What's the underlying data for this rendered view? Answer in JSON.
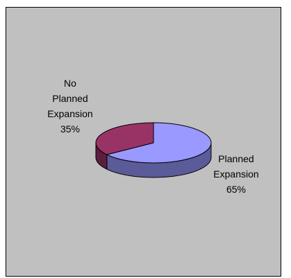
{
  "chart_data": {
    "type": "pie",
    "style": "3d",
    "slices": [
      {
        "label_lines": [
          "Planned",
          "Expansion",
          "65%"
        ],
        "value": 65,
        "color": "#9999ff",
        "side_color": "#5b5b99"
      },
      {
        "label_lines": [
          "No",
          "Planned",
          "Expansion",
          "35%"
        ],
        "value": 35,
        "color": "#993366",
        "side_color": "#5b1f3d"
      }
    ]
  }
}
